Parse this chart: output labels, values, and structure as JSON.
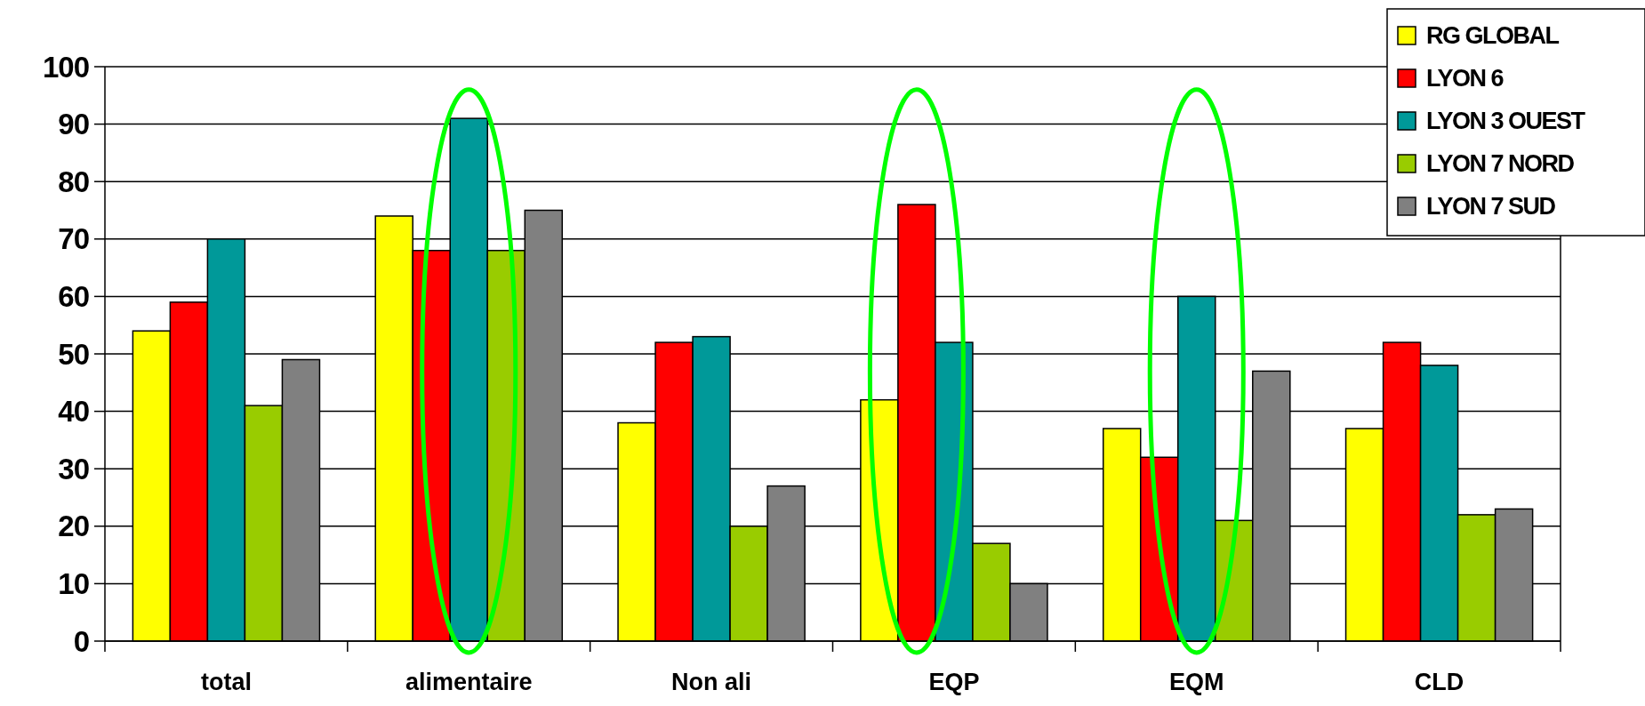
{
  "chart_data": {
    "type": "bar",
    "categories": [
      "total",
      "alimentaire",
      "Non ali",
      "EQP",
      "EQM",
      "CLD"
    ],
    "series": [
      {
        "name": "RG GLOBAL",
        "color": "#ffff00",
        "values": [
          54,
          74,
          38,
          42,
          37,
          37
        ]
      },
      {
        "name": "LYON 6",
        "color": "#ff0000",
        "values": [
          59,
          68,
          52,
          76,
          32,
          52
        ]
      },
      {
        "name": "LYON 3 OUEST",
        "color": "#009999",
        "values": [
          70,
          91,
          53,
          52,
          60,
          48
        ]
      },
      {
        "name": "LYON 7 NORD",
        "color": "#99cc00",
        "values": [
          41,
          68,
          20,
          17,
          21,
          22
        ]
      },
      {
        "name": "LYON 7 SUD",
        "color": "#808080",
        "values": [
          49,
          75,
          27,
          10,
          47,
          23
        ]
      }
    ],
    "ylim": [
      0,
      100
    ],
    "yticks": [
      0,
      10,
      20,
      30,
      40,
      50,
      60,
      70,
      80,
      90,
      100
    ],
    "grid": "y",
    "legend": "top right"
  }
}
